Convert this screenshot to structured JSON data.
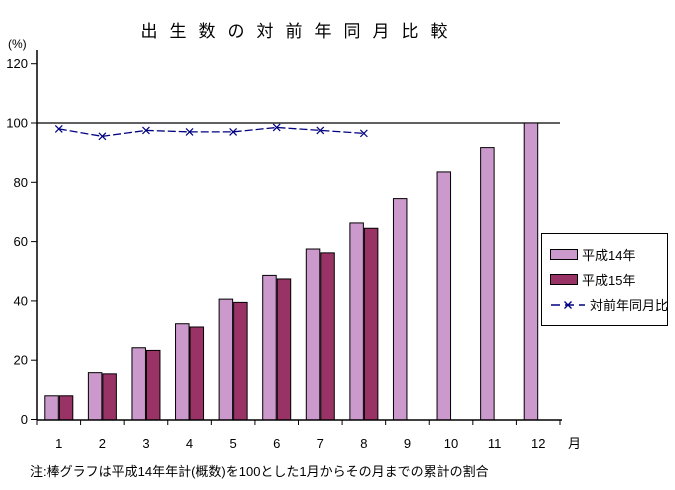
{
  "title": "出生数の対前年同月比較",
  "y_axis_unit": "(%)",
  "x_axis_unit": "月",
  "note": "注:棒グラフは平成14年年計(概数)を100とした1月からその月までの累計の割合",
  "colors": {
    "h14_bar": "#CC99CC",
    "h15_bar": "#993366",
    "ratio_line": "#000080",
    "axis": "#000000",
    "background": "#FFFFFF"
  },
  "chart_data": {
    "type": "bar",
    "title": "出生数の対前年同月比較",
    "xlabel": "月",
    "ylabel": "(%)",
    "categories": [
      "1",
      "2",
      "3",
      "4",
      "5",
      "6",
      "7",
      "8",
      "9",
      "10",
      "11",
      "12"
    ],
    "series": [
      {
        "name": "平成14年",
        "type": "bar",
        "color": "#CC99CC",
        "values": [
          8,
          15.8,
          24.2,
          32.3,
          40.6,
          48.6,
          57.5,
          66.3,
          74.5,
          83.5,
          91.7,
          100
        ]
      },
      {
        "name": "平成15年",
        "type": "bar",
        "color": "#993366",
        "values": [
          8,
          15.4,
          23.3,
          31.2,
          39.5,
          47.4,
          56.2,
          64.5,
          null,
          null,
          null,
          null
        ]
      },
      {
        "name": "対前年同月比",
        "type": "line",
        "color": "#000080",
        "marker": "x",
        "line_style": "dashed",
        "values": [
          98,
          95.5,
          97.5,
          97,
          97,
          98.5,
          97.5,
          96.5,
          null,
          null,
          null,
          null
        ]
      }
    ],
    "ylim": [
      0,
      120
    ],
    "yticks": [
      0,
      20,
      40,
      60,
      80,
      100,
      120
    ],
    "reference_line": 100,
    "grid": false,
    "legend_position": "right"
  }
}
